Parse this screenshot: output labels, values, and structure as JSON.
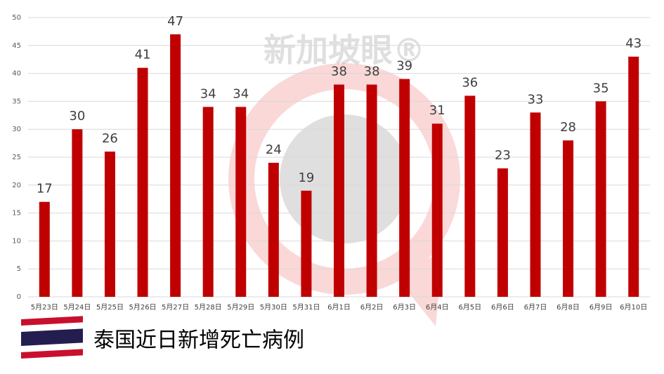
{
  "chart_data": {
    "type": "bar",
    "title": "泰国近日新增死亡病例",
    "watermark": "新加坡眼®",
    "categories": [
      "5月23日",
      "5月24日",
      "5月25日",
      "5月26日",
      "5月27日",
      "5月28日",
      "5月29日",
      "5月30日",
      "5月31日",
      "6月1日",
      "6月2日",
      "6月3日",
      "6月4日",
      "6月5日",
      "6月6日",
      "6月7日",
      "6月8日",
      "6月9日",
      "6月10日"
    ],
    "values": [
      17,
      30,
      26,
      41,
      47,
      34,
      34,
      24,
      19,
      38,
      38,
      39,
      31,
      36,
      23,
      33,
      28,
      35,
      43
    ],
    "color": "#c00000",
    "ylim": [
      0,
      50
    ],
    "yticks": [
      0,
      5,
      10,
      15,
      20,
      25,
      30,
      35,
      40,
      45,
      50
    ],
    "grid": true
  }
}
